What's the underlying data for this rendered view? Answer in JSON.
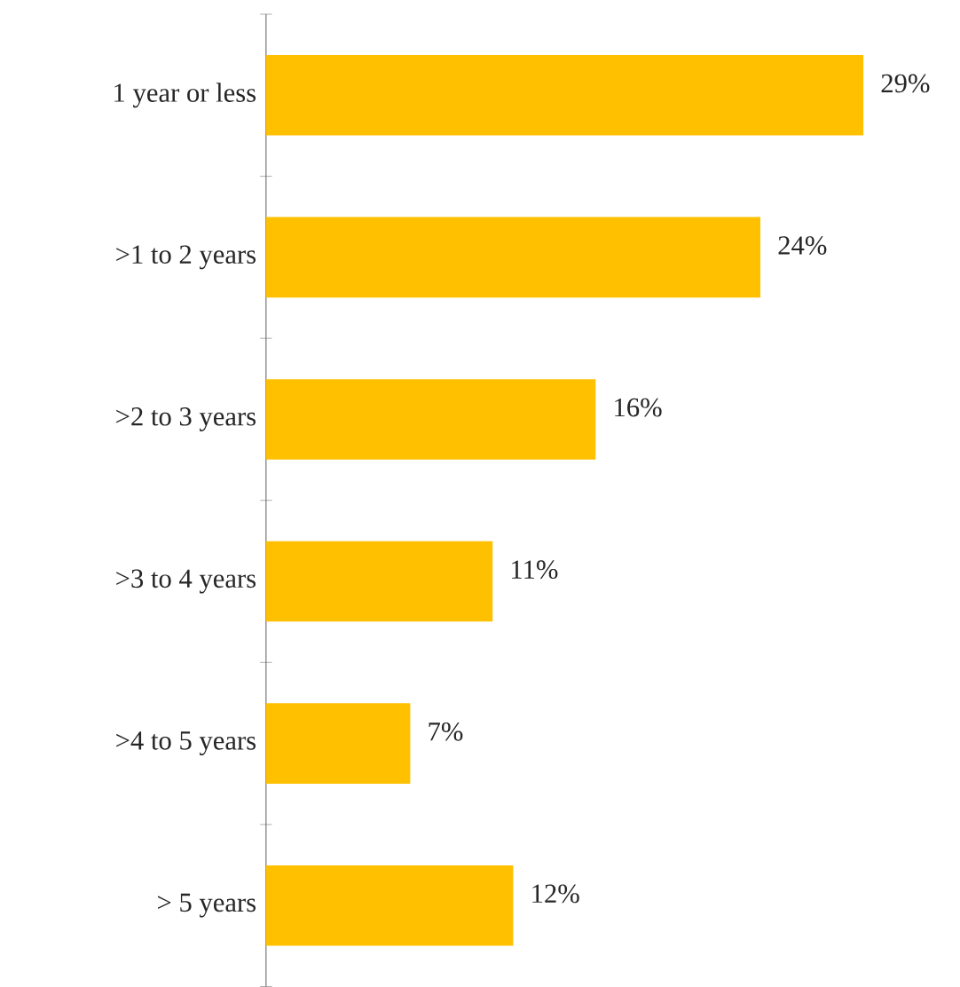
{
  "chart_data": {
    "type": "bar",
    "orientation": "horizontal",
    "categories": [
      "1 year or less",
      ">1 to 2 years",
      ">2 to 3 years",
      ">3 to 4 years",
      ">4 to 5 years",
      "> 5 years"
    ],
    "values": [
      29,
      24,
      16,
      11,
      7,
      12
    ],
    "value_labels": [
      "29%",
      "24%",
      "16%",
      "11%",
      "7%",
      "12%"
    ],
    "color": "#ffc000"
  }
}
